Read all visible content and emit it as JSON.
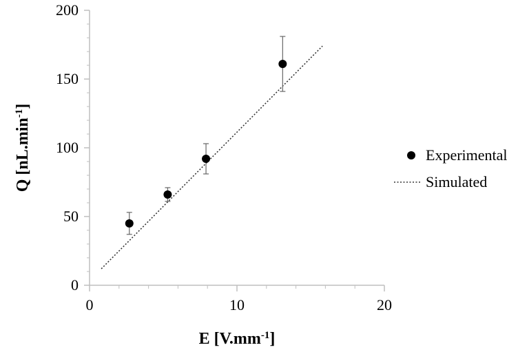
{
  "chart_data": {
    "type": "scatter",
    "xlabel": "E [V.mm",
    "xlabel_superscript": "-1",
    "xlabel_suffix": "]",
    "ylabel": "Q [nL.min",
    "ylabel_superscript": "-1",
    "ylabel_suffix": "]",
    "xlim": [
      0,
      20
    ],
    "ylim": [
      0,
      200
    ],
    "x_ticks": [
      0,
      10,
      20
    ],
    "x_minor_step": 2,
    "y_ticks": [
      0,
      50,
      100,
      150,
      200
    ],
    "y_minor_step": 10,
    "grid": false,
    "legend_position": "right",
    "series": [
      {
        "name": "Experimental",
        "kind": "points-with-error-bars",
        "marker": "filled-circle",
        "color": "#000000",
        "x": [
          2.7,
          5.3,
          7.9,
          13.1
        ],
        "y": [
          45,
          66,
          92,
          161
        ],
        "error": [
          8,
          5,
          11,
          20
        ]
      },
      {
        "name": "Simulated",
        "kind": "dotted-line",
        "color": "#333333",
        "x": [
          0.8,
          15.8
        ],
        "y": [
          12,
          174
        ]
      }
    ]
  }
}
